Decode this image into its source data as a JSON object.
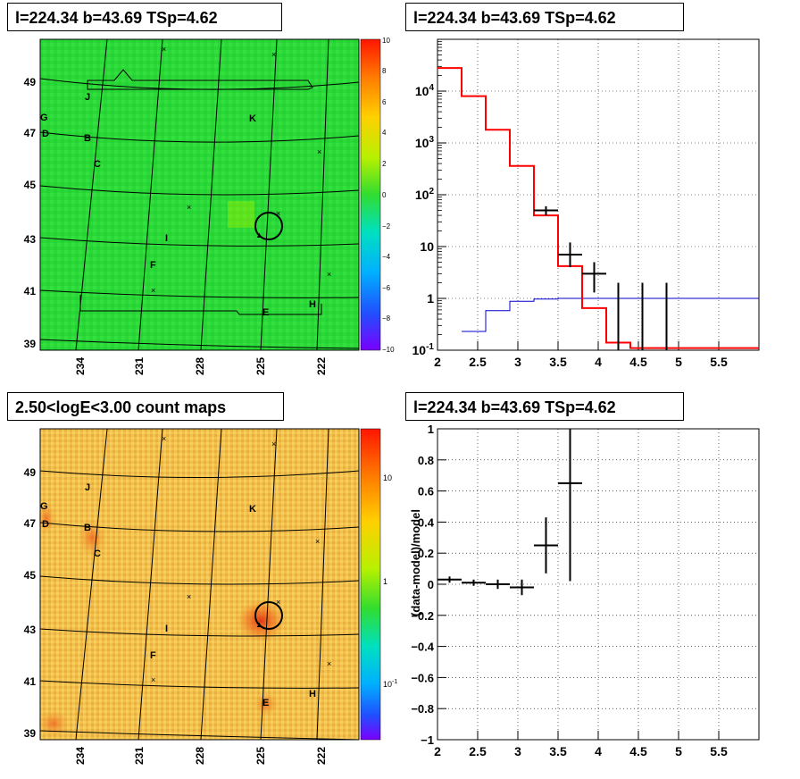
{
  "titles": {
    "tl": "l=224.34 b=43.69 TSp=4.62",
    "tr": "l=224.34 b=43.69 TSp=4.62",
    "bl": "2.50<logE<3.00 count maps",
    "br": "l=224.34 b=43.69 TSp=4.62"
  },
  "chart_data": [
    {
      "id": "tsmap",
      "type": "heatmap",
      "title": "l=224.34 b=43.69 TSp=4.62",
      "x_ticks": [
        "234",
        "231",
        "228",
        "225",
        "222"
      ],
      "y_ticks": [
        "39",
        "41",
        "43",
        "45",
        "47",
        "49"
      ],
      "colorbar": {
        "ticks": [
          "10",
          "8",
          "6",
          "4",
          "2",
          "0",
          "−2",
          "−4",
          "−6",
          "−8",
          "−10"
        ],
        "range": [
          -10,
          10
        ]
      },
      "dominant_color": "#2bd93a",
      "source_labels": [
        "J",
        "G",
        "D",
        "B",
        "C",
        "K",
        "I",
        "F",
        "E",
        "H"
      ]
    },
    {
      "id": "spectrum",
      "type": "line",
      "title": "l=224.34 b=43.69 TSp=4.62",
      "x_range": [
        2,
        6
      ],
      "y_range": [
        0.1,
        100000
      ],
      "y_scale": "log",
      "grid": true,
      "x_tick_labels": [
        "2",
        "2.5",
        "3",
        "3.5",
        "4",
        "4.5",
        "5",
        "5.5"
      ],
      "y_tick_labels": [
        "10^-1",
        "1",
        "10",
        "10^2",
        "10^3",
        "10^4"
      ],
      "red_model_steps": [
        {
          "x0": 2.0,
          "x1": 2.3,
          "y": 28000
        },
        {
          "x0": 2.3,
          "x1": 2.6,
          "y": 8000
        },
        {
          "x0": 2.6,
          "x1": 2.9,
          "y": 1800
        },
        {
          "x0": 2.9,
          "x1": 3.2,
          "y": 360
        },
        {
          "x0": 3.2,
          "x1": 3.5,
          "y": 40
        },
        {
          "x0": 3.5,
          "x1": 3.8,
          "y": 4.2
        },
        {
          "x0": 3.8,
          "x1": 4.1,
          "y": 0.65
        },
        {
          "x0": 4.1,
          "x1": 4.4,
          "y": 0.14
        },
        {
          "x0": 4.4,
          "x1": 6.0,
          "y": 0.11
        }
      ],
      "blue_model_steps": [
        {
          "x0": 2.3,
          "x1": 2.6,
          "y": 0.23
        },
        {
          "x0": 2.6,
          "x1": 2.9,
          "y": 0.58
        },
        {
          "x0": 2.9,
          "x1": 3.2,
          "y": 0.88
        },
        {
          "x0": 3.2,
          "x1": 3.5,
          "y": 0.97
        },
        {
          "x0": 3.5,
          "x1": 6.0,
          "y": 1.0
        }
      ],
      "data_points": [
        {
          "x": 3.35,
          "xerr": 0.15,
          "y": 50,
          "ylo": 40,
          "yhi": 60
        },
        {
          "x": 3.65,
          "xerr": 0.15,
          "y": 7,
          "ylo": 4,
          "yhi": 12
        },
        {
          "x": 3.95,
          "xerr": 0.15,
          "y": 3,
          "ylo": 1.3,
          "yhi": 5
        },
        {
          "x": 4.25,
          "xerr": 0.0,
          "y": 1,
          "ylo": 0.1,
          "yhi": 2
        },
        {
          "x": 4.55,
          "xerr": 0.0,
          "y": 1,
          "ylo": 0.1,
          "yhi": 2
        },
        {
          "x": 4.85,
          "xerr": 0.0,
          "y": 1,
          "ylo": 0.1,
          "yhi": 2
        }
      ]
    },
    {
      "id": "countmap",
      "type": "heatmap",
      "title": "2.50<logE<3.00 count maps",
      "x_ticks": [
        "234",
        "231",
        "228",
        "225",
        "222"
      ],
      "y_ticks": [
        "39",
        "41",
        "43",
        "45",
        "47",
        "49"
      ],
      "colorbar": {
        "ticks": [
          "10",
          "1",
          "10^-1"
        ],
        "scale": "log"
      },
      "dominant_color": "#f0c040",
      "source_labels": [
        "J",
        "G",
        "D",
        "B",
        "C",
        "K",
        "I",
        "F",
        "E",
        "H"
      ]
    },
    {
      "id": "residuals",
      "type": "scatter",
      "title": "l=224.34 b=43.69 TSp=4.62",
      "ylabel": "(data-model)/model",
      "x_range": [
        2,
        6
      ],
      "y_range": [
        -1,
        1
      ],
      "grid": true,
      "x_tick_labels": [
        "2",
        "2.5",
        "3",
        "3.5",
        "4",
        "4.5",
        "5",
        "5.5"
      ],
      "y_tick_labels": [
        "−1",
        "−0.8",
        "−0.6",
        "−0.4",
        "−0.2",
        "0",
        "0.2",
        "0.4",
        "0.6",
        "0.8",
        "1"
      ],
      "points": [
        {
          "x": 2.15,
          "xerr": 0.15,
          "y": 0.03,
          "ylo": 0.01,
          "yhi": 0.05
        },
        {
          "x": 2.45,
          "xerr": 0.15,
          "y": 0.01,
          "ylo": -0.01,
          "yhi": 0.03
        },
        {
          "x": 2.75,
          "xerr": 0.15,
          "y": 0.0,
          "ylo": -0.03,
          "yhi": 0.03
        },
        {
          "x": 3.05,
          "xerr": 0.15,
          "y": -0.02,
          "ylo": -0.07,
          "yhi": 0.03
        },
        {
          "x": 3.35,
          "xerr": 0.15,
          "y": 0.25,
          "ylo": 0.07,
          "yhi": 0.43
        },
        {
          "x": 3.65,
          "xerr": 0.15,
          "y": 0.65,
          "ylo": 0.02,
          "yhi": 1.0
        }
      ]
    }
  ]
}
